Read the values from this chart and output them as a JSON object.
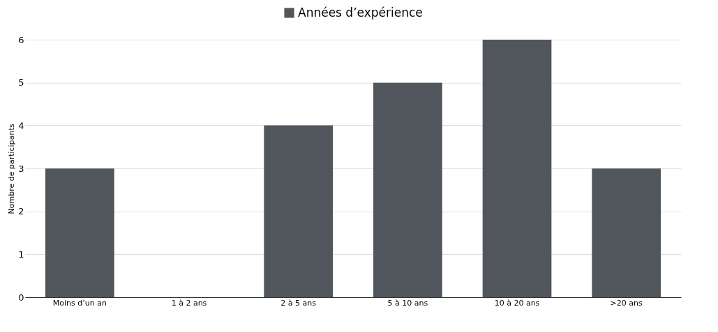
{
  "chart_data": {
    "type": "bar",
    "ylabel": "Nombre de participants",
    "categories": [
      "Moins d’un an",
      "1 à 2 ans",
      "2 à 5 ans",
      "5 à 10 ans",
      "10 à 20 ans",
      ">20 ans"
    ],
    "series": [
      {
        "name": "Années d’expérience",
        "color": "#50565c",
        "values": [
          3,
          0,
          4,
          5,
          6,
          3
        ]
      }
    ],
    "ylim": [
      0,
      6
    ],
    "yticks": [
      0,
      1,
      2,
      3,
      4,
      5,
      6
    ],
    "grid": "y",
    "legend": "top"
  }
}
